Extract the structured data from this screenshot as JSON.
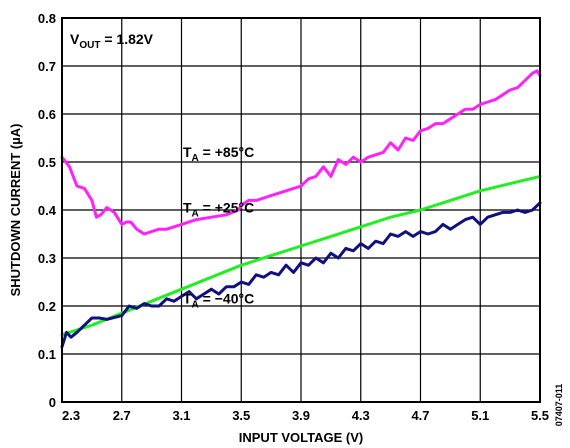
{
  "chart_data": {
    "type": "line",
    "xlabel": "INPUT VOLTAGE (V)",
    "ylabel": "SHUTDOWN CURRENT (µA)",
    "xlim": [
      2.3,
      5.5
    ],
    "ylim": [
      0,
      0.8
    ],
    "xticks": [
      "2.3",
      "2.7",
      "3.1",
      "3.5",
      "3.9",
      "4.3",
      "4.7",
      "5.1",
      "5.5"
    ],
    "yticks": [
      "0",
      "0.1",
      "0.2",
      "0.3",
      "0.4",
      "0.5",
      "0.6",
      "0.7",
      "0.8"
    ],
    "grid": true,
    "annotation": {
      "main": "V",
      "sub": "OUT",
      "rest": " = 1.82V"
    },
    "figure_id": "07407-011",
    "series": [
      {
        "name": {
          "main": "T",
          "sub": "A",
          "rest": " = +85°C"
        },
        "label_at": [
          3.11,
          0.51
        ],
        "color": "#ff22ff",
        "x": [
          2.3,
          2.35,
          2.4,
          2.45,
          2.5,
          2.53,
          2.56,
          2.6,
          2.65,
          2.7,
          2.73,
          2.76,
          2.8,
          2.85,
          2.9,
          2.95,
          3.0,
          3.1,
          3.2,
          3.3,
          3.4,
          3.48,
          3.5,
          3.55,
          3.6,
          3.65,
          3.7,
          3.8,
          3.9,
          3.95,
          4.0,
          4.05,
          4.1,
          4.15,
          4.2,
          4.25,
          4.3,
          4.35,
          4.4,
          4.45,
          4.5,
          4.55,
          4.6,
          4.65,
          4.7,
          4.75,
          4.8,
          4.85,
          4.9,
          4.95,
          5.0,
          5.05,
          5.1,
          5.15,
          5.2,
          5.25,
          5.3,
          5.35,
          5.4,
          5.45,
          5.48,
          5.5
        ],
        "y": [
          0.51,
          0.49,
          0.45,
          0.445,
          0.42,
          0.385,
          0.39,
          0.405,
          0.395,
          0.37,
          0.375,
          0.375,
          0.36,
          0.35,
          0.355,
          0.36,
          0.36,
          0.37,
          0.38,
          0.385,
          0.39,
          0.4,
          0.41,
          0.42,
          0.42,
          0.425,
          0.43,
          0.44,
          0.45,
          0.465,
          0.47,
          0.49,
          0.47,
          0.505,
          0.495,
          0.51,
          0.5,
          0.51,
          0.515,
          0.52,
          0.54,
          0.525,
          0.55,
          0.545,
          0.565,
          0.57,
          0.58,
          0.58,
          0.59,
          0.6,
          0.61,
          0.61,
          0.62,
          0.625,
          0.63,
          0.64,
          0.65,
          0.655,
          0.67,
          0.685,
          0.69,
          0.68
        ]
      },
      {
        "name": {
          "main": "T",
          "sub": "A",
          "rest": " = +25°C"
        },
        "label_at": [
          3.11,
          0.395
        ],
        "color": "#22ee22",
        "x": [
          2.3,
          2.5,
          2.7,
          2.9,
          3.1,
          3.3,
          3.5,
          3.7,
          3.9,
          4.1,
          4.3,
          4.5,
          4.7,
          4.9,
          5.1,
          5.3,
          5.5
        ],
        "y": [
          0.14,
          0.16,
          0.185,
          0.21,
          0.235,
          0.26,
          0.285,
          0.305,
          0.325,
          0.345,
          0.365,
          0.385,
          0.4,
          0.42,
          0.44,
          0.455,
          0.47
        ]
      },
      {
        "name": {
          "main": "T",
          "sub": "A",
          "rest": " = −40°C"
        },
        "label_at": [
          3.11,
          0.205
        ],
        "color": "#101080",
        "x": [
          2.3,
          2.33,
          2.36,
          2.4,
          2.45,
          2.5,
          2.55,
          2.6,
          2.7,
          2.75,
          2.8,
          2.85,
          2.9,
          2.95,
          3.0,
          3.05,
          3.1,
          3.15,
          3.2,
          3.25,
          3.3,
          3.35,
          3.4,
          3.45,
          3.5,
          3.55,
          3.6,
          3.65,
          3.7,
          3.75,
          3.8,
          3.85,
          3.9,
          3.95,
          4.0,
          4.05,
          4.1,
          4.15,
          4.2,
          4.25,
          4.3,
          4.35,
          4.4,
          4.45,
          4.5,
          4.55,
          4.6,
          4.65,
          4.7,
          4.75,
          4.8,
          4.85,
          4.9,
          4.95,
          5.0,
          5.05,
          5.1,
          5.15,
          5.2,
          5.25,
          5.3,
          5.35,
          5.4,
          5.45,
          5.5
        ],
        "y": [
          0.115,
          0.145,
          0.135,
          0.145,
          0.16,
          0.175,
          0.175,
          0.172,
          0.18,
          0.2,
          0.195,
          0.205,
          0.2,
          0.2,
          0.215,
          0.21,
          0.22,
          0.23,
          0.215,
          0.225,
          0.235,
          0.225,
          0.24,
          0.24,
          0.25,
          0.245,
          0.265,
          0.26,
          0.27,
          0.265,
          0.285,
          0.27,
          0.29,
          0.285,
          0.3,
          0.29,
          0.31,
          0.3,
          0.32,
          0.315,
          0.33,
          0.32,
          0.335,
          0.33,
          0.35,
          0.345,
          0.355,
          0.345,
          0.355,
          0.35,
          0.355,
          0.37,
          0.36,
          0.37,
          0.38,
          0.385,
          0.37,
          0.385,
          0.39,
          0.395,
          0.395,
          0.4,
          0.395,
          0.4,
          0.415
        ]
      }
    ]
  }
}
